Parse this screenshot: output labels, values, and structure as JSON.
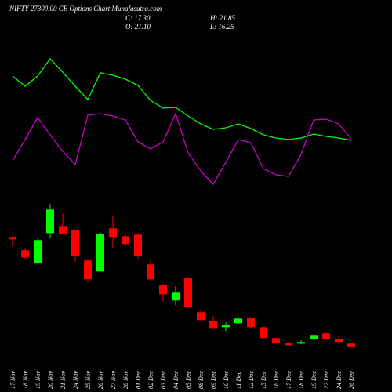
{
  "chart_data": {
    "type": "candlestick",
    "title": "NIFTY 27300.00 CE Options Chart Munafasutra.com",
    "annotations": [
      "C: 17.30",
      "H: 21.85",
      "O: 21.10",
      "L: 16.25"
    ],
    "categories": [
      "17 Nov",
      "18 Nov",
      "19 Nov",
      "20 Nov",
      "21 Nov",
      "24 Nov",
      "25 Nov",
      "26 Nov",
      "27 Nov",
      "28 Nov",
      "01 Dec",
      "02 Dec",
      "03 Dec",
      "04 Dec",
      "05 Dec",
      "08 Dec",
      "09 Dec",
      "10 Dec",
      "11 Dec",
      "12 Dec",
      "15 Dec",
      "16 Dec",
      "17 Dec",
      "18 Dec",
      "19 Dec",
      "22 Dec",
      "24 Dec",
      "26 Dec"
    ],
    "open": [
      157,
      140,
      124,
      162,
      171,
      166,
      127,
      113,
      168,
      158,
      160,
      122,
      96,
      76,
      105,
      61,
      50,
      42,
      47,
      54,
      42,
      28,
      22,
      21,
      27,
      34,
      27,
      21.1
    ],
    "high": [
      159,
      143,
      155,
      199,
      187,
      167,
      129,
      163,
      184,
      161,
      162,
      128,
      97,
      94,
      106,
      63,
      56,
      48,
      54,
      55,
      43,
      29,
      23,
      25,
      33,
      36,
      31,
      21.85
    ],
    "low": [
      145,
      129,
      122,
      155,
      161,
      126,
      99,
      113,
      143,
      145,
      129,
      102,
      75,
      70,
      67,
      49,
      39,
      37,
      46,
      41,
      27,
      21,
      18,
      20,
      26,
      26,
      21,
      16.25
    ],
    "close": [
      154,
      131,
      153,
      192,
      161,
      133,
      103,
      161,
      157,
      148,
      133,
      103,
      84,
      86,
      68,
      51,
      40,
      45,
      53,
      42,
      28,
      22,
      19,
      23,
      32,
      27,
      23,
      17.3
    ],
    "up_color": "#00ff00",
    "down_color": "#ff0000",
    "ylim": [
      0,
      200
    ],
    "y2lim": [
      0,
      300
    ],
    "series": [
      {
        "name": "",
        "color": "#00ff00",
        "axis": "y2",
        "values": [
          203,
          190,
          203,
          225,
          208,
          190,
          173,
          207,
          204,
          199,
          191,
          172,
          162,
          163,
          152,
          142,
          135,
          137,
          142,
          136,
          128,
          124,
          122,
          124,
          129,
          126,
          124,
          121
        ]
      },
      {
        "name": "",
        "color": "#cc00cc",
        "axis": "y2",
        "values": [
          95,
          122,
          150,
          128,
          107,
          90,
          153,
          155,
          152,
          147,
          119,
          110,
          119,
          155,
          105,
          82,
          65,
          93,
          122,
          118,
          85,
          77,
          75,
          103,
          147,
          148,
          142,
          123
        ]
      }
    ]
  }
}
